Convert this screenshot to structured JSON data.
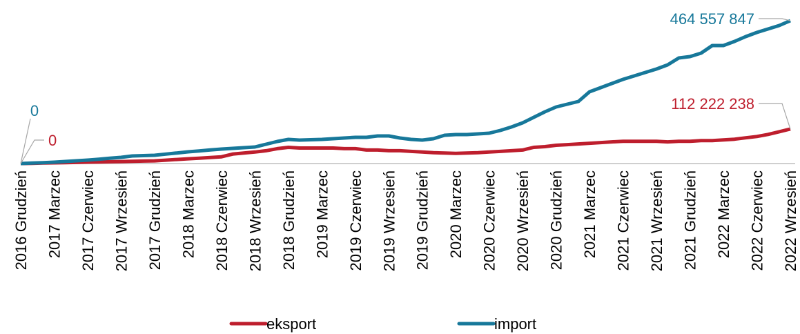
{
  "chart_data": {
    "type": "line",
    "categories": [
      "2016 Grudzień",
      null,
      null,
      "2017 Marzec",
      null,
      null,
      "2017 Czerwiec",
      null,
      null,
      "2017 Wrzesień",
      null,
      null,
      "2017 Grudzień",
      null,
      null,
      "2018 Marzec",
      null,
      null,
      "2018 Czerwiec",
      null,
      null,
      "2018 Wrzesień",
      null,
      null,
      "2018 Grudzień",
      null,
      null,
      "2019 Marzec",
      null,
      null,
      "2019 Czerwiec",
      null,
      null,
      "2019 Wrzesień",
      null,
      null,
      "2019 Grudzień",
      null,
      null,
      "2020 Marzec",
      null,
      null,
      "2020 Czerwiec",
      null,
      null,
      "2020 Wrzesień",
      null,
      null,
      "2020 Grudzień",
      null,
      null,
      "2021 Marzec",
      null,
      null,
      "2021 Czerwiec",
      null,
      null,
      "2021 Wrzesień",
      null,
      null,
      "2021 Grudzień",
      null,
      null,
      "2022 Marzec",
      null,
      null,
      "2022 Czerwiec",
      null,
      null,
      "2022 Wrzesień"
    ],
    "series": [
      {
        "name": "eksport",
        "color": "#be1e2d",
        "values": [
          0,
          700000,
          1500000,
          2200000,
          2900000,
          3700000,
          4400000,
          5100000,
          5900000,
          6600000,
          7300000,
          8100000,
          8800000,
          11000000,
          13200000,
          15400000,
          17600000,
          19800000,
          22000000,
          30800000,
          34100000,
          37400000,
          41800000,
          48400000,
          52800000,
          50600000,
          50600000,
          50600000,
          50600000,
          48400000,
          48400000,
          44000000,
          44000000,
          41800000,
          41800000,
          39600000,
          37400000,
          35200000,
          34100000,
          33000000,
          34100000,
          35200000,
          37400000,
          39600000,
          41800000,
          44000000,
          52800000,
          55000000,
          59400000,
          61600000,
          63800000,
          66000000,
          68200000,
          70400000,
          72600000,
          72600000,
          72600000,
          72600000,
          70400000,
          72600000,
          72600000,
          74800000,
          74800000,
          77000000,
          79200000,
          83600000,
          88000000,
          94600000,
          103400000,
          112222238
        ],
        "value_labels": [
          "0",
          null,
          null,
          null,
          null,
          null,
          null,
          null,
          null,
          null,
          null,
          null,
          null,
          null,
          null,
          null,
          null,
          null,
          null,
          null,
          null,
          null,
          null,
          null,
          null,
          null,
          null,
          null,
          null,
          null,
          null,
          null,
          null,
          null,
          null,
          null,
          null,
          null,
          null,
          null,
          null,
          null,
          null,
          null,
          null,
          null,
          null,
          null,
          null,
          null,
          null,
          null,
          null,
          null,
          null,
          null,
          null,
          null,
          null,
          null,
          null,
          null,
          null,
          null,
          null,
          null,
          null,
          null,
          null,
          "112 222 238"
        ]
      },
      {
        "name": "import",
        "color": "#17789a",
        "values": [
          0,
          1600000,
          2900000,
          4500000,
          6700000,
          9000000,
          11200000,
          14100000,
          17300000,
          20200000,
          24700000,
          25800000,
          26900000,
          30700000,
          34300000,
          38100000,
          41100000,
          44200000,
          47100000,
          49400000,
          51600000,
          53900000,
          62800000,
          71800000,
          78500000,
          76300000,
          77400000,
          78500000,
          80800000,
          83000000,
          85300000,
          85300000,
          89800000,
          89800000,
          83000000,
          78500000,
          76300000,
          80800000,
          92000000,
          94200000,
          94200000,
          96500000,
          98700000,
          107700000,
          118900000,
          132400000,
          150300000,
          168300000,
          184000000,
          193000000,
          202000000,
          233400000,
          246800000,
          260300000,
          273800000,
          285000000,
          296200000,
          307400000,
          320900000,
          343300000,
          347800000,
          359000000,
          383700000,
          383700000,
          397200000,
          412900000,
          426400000,
          437600000,
          448800000,
          464557847
        ],
        "value_labels": [
          "0",
          null,
          null,
          null,
          null,
          null,
          null,
          null,
          null,
          null,
          null,
          null,
          null,
          null,
          null,
          null,
          null,
          null,
          null,
          null,
          null,
          null,
          null,
          null,
          null,
          null,
          null,
          null,
          null,
          null,
          null,
          null,
          null,
          null,
          null,
          null,
          null,
          null,
          null,
          null,
          null,
          null,
          null,
          null,
          null,
          null,
          null,
          null,
          null,
          null,
          null,
          null,
          null,
          null,
          null,
          null,
          null,
          null,
          null,
          null,
          null,
          null,
          null,
          null,
          null,
          null,
          null,
          null,
          null,
          "464 557 847"
        ]
      }
    ]
  }
}
